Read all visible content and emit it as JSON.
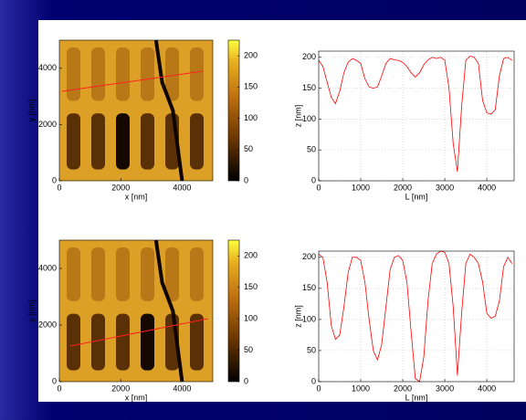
{
  "chart_data": [
    {
      "type": "image",
      "xlabel": "x [nm]",
      "ylabel": "y [nm]",
      "xlim": [
        0,
        5000
      ],
      "ylim": [
        0,
        5000
      ],
      "xticks": [
        0,
        2000,
        4000
      ],
      "yticks": [
        0,
        2000,
        4000
      ],
      "colorbar": {
        "lim": [
          0,
          225
        ],
        "ticks": [
          0,
          50,
          100,
          150,
          200
        ]
      }
    },
    {
      "type": "line",
      "xlabel": "L [nm]",
      "ylabel": "z [nm]",
      "xlim": [
        0,
        4650
      ],
      "ylim": [
        0,
        210
      ],
      "xticks": [
        0,
        1000,
        2000,
        3000,
        4000
      ],
      "yticks": [
        0,
        50,
        100,
        150,
        200
      ],
      "grid": true,
      "color": "#ff0000",
      "x": [
        0,
        100,
        200,
        300,
        400,
        500,
        600,
        700,
        800,
        900,
        1000,
        1100,
        1200,
        1300,
        1400,
        1500,
        1600,
        1700,
        1800,
        1900,
        2000,
        2100,
        2200,
        2300,
        2400,
        2500,
        2600,
        2700,
        2800,
        2900,
        3000,
        3100,
        3200,
        3300,
        3400,
        3500,
        3600,
        3700,
        3800,
        3900,
        4000,
        4100,
        4200,
        4300,
        4400,
        4500,
        4600
      ],
      "values": [
        195,
        185,
        160,
        135,
        125,
        145,
        175,
        192,
        198,
        195,
        190,
        165,
        152,
        150,
        152,
        170,
        190,
        198,
        196,
        195,
        192,
        185,
        175,
        168,
        175,
        188,
        196,
        200,
        198,
        200,
        195,
        150,
        60,
        15,
        120,
        195,
        202,
        200,
        190,
        130,
        110,
        108,
        115,
        170,
        198,
        200,
        195
      ]
    },
    {
      "type": "image",
      "xlabel": "x [nm]",
      "ylabel": "y [nm]",
      "xlim": [
        0,
        5000
      ],
      "ylim": [
        0,
        5000
      ],
      "xticks": [
        0,
        2000,
        4000
      ],
      "yticks": [
        0,
        2000,
        4000
      ],
      "colorbar": {
        "lim": [
          0,
          225
        ],
        "ticks": [
          0,
          50,
          100,
          150,
          200
        ]
      }
    },
    {
      "type": "line",
      "xlabel": "L [nm]",
      "ylabel": "z [nm]",
      "xlim": [
        0,
        4650
      ],
      "ylim": [
        0,
        210
      ],
      "xticks": [
        0,
        1000,
        2000,
        3000,
        4000
      ],
      "yticks": [
        0,
        50,
        100,
        150,
        200
      ],
      "grid": true,
      "color": "#ff0000",
      "x": [
        0,
        100,
        200,
        300,
        400,
        500,
        600,
        700,
        800,
        900,
        1000,
        1100,
        1200,
        1300,
        1400,
        1500,
        1600,
        1700,
        1800,
        1900,
        2000,
        2100,
        2200,
        2300,
        2400,
        2500,
        2600,
        2700,
        2800,
        2900,
        3000,
        3100,
        3200,
        3300,
        3400,
        3500,
        3600,
        3700,
        3800,
        3900,
        4000,
        4100,
        4200,
        4300,
        4400,
        4500,
        4600
      ],
      "values": [
        205,
        200,
        160,
        90,
        68,
        75,
        120,
        175,
        200,
        200,
        195,
        160,
        100,
        50,
        35,
        60,
        120,
        180,
        200,
        203,
        195,
        160,
        80,
        5,
        0,
        40,
        130,
        190,
        205,
        210,
        208,
        190,
        120,
        10,
        110,
        190,
        205,
        200,
        190,
        160,
        110,
        102,
        105,
        130,
        185,
        200,
        190
      ]
    }
  ]
}
